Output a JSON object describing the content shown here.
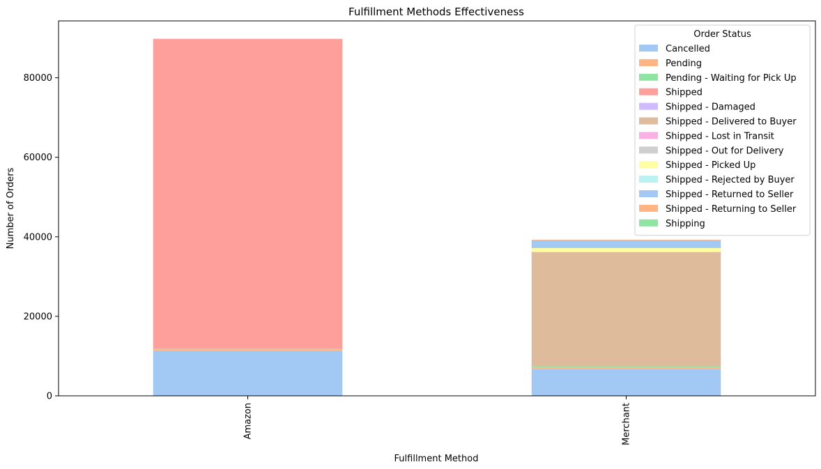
{
  "chart_data": {
    "type": "bar",
    "stacked": true,
    "title": "Fulfillment Methods Effectiveness",
    "xlabel": "Fulfillment Method",
    "ylabel": "Number of Orders",
    "categories": [
      "Amazon",
      "Merchant"
    ],
    "ylim": [
      0,
      94300
    ],
    "yticks": [
      0,
      20000,
      40000,
      60000,
      80000
    ],
    "ytick_labels": [
      "0",
      "20000",
      "40000",
      "60000",
      "80000"
    ],
    "grid": false,
    "legend": {
      "title": "Order Status",
      "placement": "top-right"
    },
    "series": [
      {
        "name": "Cancelled",
        "color": "#a1c9f4",
        "values": [
          11300,
          6800
        ]
      },
      {
        "name": "Pending",
        "color": "#ffb482",
        "values": [
          400,
          250
        ]
      },
      {
        "name": "Pending - Waiting for Pick Up",
        "color": "#8de5a1",
        "values": [
          100,
          300
        ]
      },
      {
        "name": "Shipped",
        "color": "#ff9f9b",
        "values": [
          78000,
          0
        ]
      },
      {
        "name": "Shipped - Damaged",
        "color": "#d0bbff",
        "values": [
          0,
          10
        ]
      },
      {
        "name": "Shipped - Delivered to Buyer",
        "color": "#debb9b",
        "values": [
          0,
          28800
        ]
      },
      {
        "name": "Shipped - Lost in Transit",
        "color": "#fab0e4",
        "values": [
          0,
          10
        ]
      },
      {
        "name": "Shipped - Out for Delivery",
        "color": "#cfcfcf",
        "values": [
          0,
          30
        ]
      },
      {
        "name": "Shipped - Picked Up",
        "color": "#fffea3",
        "values": [
          0,
          970
        ]
      },
      {
        "name": "Shipped - Rejected by Buyer",
        "color": "#b9f2f0",
        "values": [
          0,
          10
        ]
      },
      {
        "name": "Shipped - Returned to Seller",
        "color": "#a1c9f4",
        "values": [
          0,
          1950
        ]
      },
      {
        "name": "Shipped - Returning to Seller",
        "color": "#ffb482",
        "values": [
          0,
          140
        ]
      },
      {
        "name": "Shipping",
        "color": "#8de5a1",
        "values": [
          0,
          8
        ]
      }
    ]
  }
}
